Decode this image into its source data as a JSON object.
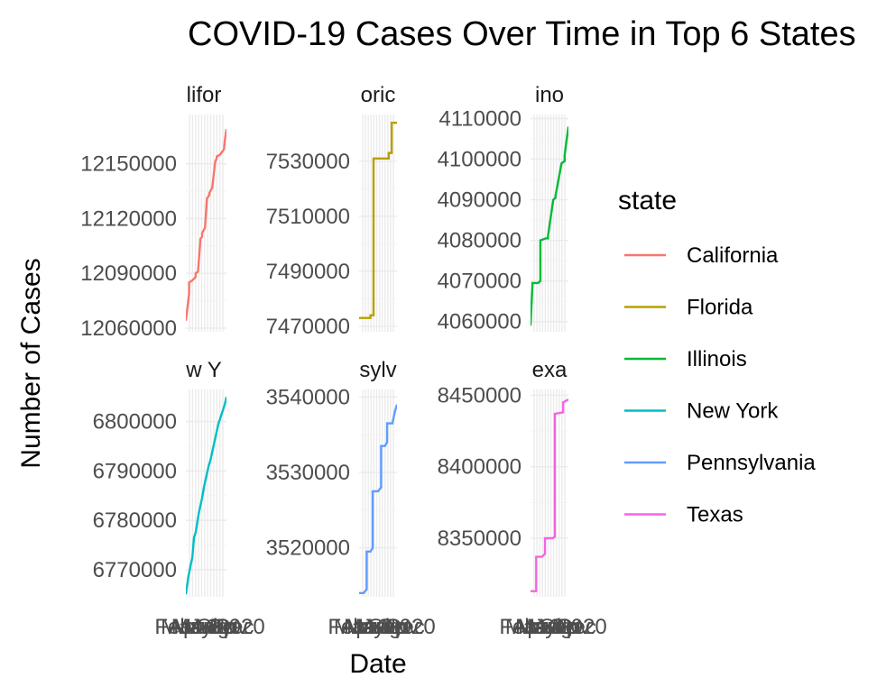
{
  "chart_data": {
    "type": "line",
    "title": "COVID-19 Cases Over Time in Top 6 States",
    "xlabel": "Date",
    "ylabel": "Number of Cases",
    "legend": {
      "title": "state",
      "position": "right"
    },
    "x_tick_labels": [
      "Feb",
      "Mar",
      "Apr",
      "May",
      "Jun",
      "Jul",
      "Aug",
      "Sep",
      "Oct",
      "Nov",
      "Dec",
      "2020"
    ],
    "grid": true,
    "panels": [
      {
        "state": "California",
        "strip_label": "lifor",
        "color": "#F8766D",
        "yticks": [
          12060000,
          12090000,
          12120000,
          12150000
        ],
        "ylim": [
          12058000,
          12177000
        ],
        "x": [
          0.0,
          0.08,
          0.08,
          0.15,
          0.2,
          0.24,
          0.24,
          0.3,
          0.36,
          0.4,
          0.4,
          0.47,
          0.52,
          0.58,
          0.58,
          0.65,
          0.72,
          0.76,
          0.76,
          0.84,
          0.91,
          0.94,
          0.96,
          1.0
        ],
        "values": [
          12064000,
          12079000,
          12085000,
          12086000,
          12087000,
          12088000,
          12090000,
          12091000,
          12109000,
          12110000,
          12112000,
          12115000,
          12131000,
          12133000,
          12134000,
          12137000,
          12151000,
          12153000,
          12154000,
          12155000,
          12157000,
          12158000,
          12163000,
          12169000
        ]
      },
      {
        "state": "Florida",
        "strip_label": "oric",
        "color": "#B79F00",
        "yticks": [
          7470000,
          7490000,
          7510000,
          7530000
        ],
        "ylim": [
          7468000,
          7547000
        ],
        "x": [
          0.0,
          0.3,
          0.3,
          0.38,
          0.38,
          0.78,
          0.78,
          0.86,
          0.86,
          1.0
        ],
        "values": [
          7473000,
          7473000,
          7474000,
          7474000,
          7531000,
          7531000,
          7533000,
          7533000,
          7544000,
          7544000
        ]
      },
      {
        "state": "Illinois",
        "strip_label": "ino",
        "color": "#00BA38",
        "yticks": [
          4060000,
          4070000,
          4080000,
          4090000,
          4100000,
          4110000
        ],
        "ylim": [
          4057500,
          4111000
        ],
        "x": [
          0.0,
          0.05,
          0.05,
          0.2,
          0.26,
          0.26,
          0.4,
          0.46,
          0.46,
          0.6,
          0.66,
          0.66,
          0.82,
          0.9,
          0.9,
          1.0
        ],
        "values": [
          4059000,
          4069000,
          4069500,
          4069500,
          4070000,
          4080000,
          4080500,
          4080500,
          4081000,
          4090000,
          4090500,
          4091000,
          4099000,
          4099500,
          4101000,
          4108000
        ]
      },
      {
        "state": "New York",
        "strip_label": "w Y",
        "color": "#00BFC4",
        "yticks": [
          6770000,
          6780000,
          6790000,
          6800000
        ],
        "ylim": [
          6764500,
          6806500
        ],
        "x": [
          0.0,
          0.06,
          0.12,
          0.16,
          0.2,
          0.24,
          0.28,
          0.32,
          0.36,
          0.4,
          0.44,
          0.48,
          0.52,
          0.56,
          0.6,
          0.64,
          0.68,
          0.72,
          0.76,
          0.8,
          0.84,
          0.88,
          0.92,
          0.96,
          1.0
        ],
        "values": [
          6765000,
          6768500,
          6771000,
          6772500,
          6776500,
          6777500,
          6779500,
          6781500,
          6783000,
          6784500,
          6786500,
          6788000,
          6789500,
          6791000,
          6792000,
          6793500,
          6795000,
          6796500,
          6798000,
          6799500,
          6800500,
          6801500,
          6802500,
          6803500,
          6805000
        ]
      },
      {
        "state": "Pennsylvania",
        "strip_label": "sylv",
        "color": "#619CFF",
        "yticks": [
          3520000,
          3530000,
          3540000
        ],
        "ylim": [
          3513500,
          3541000
        ],
        "x": [
          0.0,
          0.12,
          0.2,
          0.2,
          0.3,
          0.36,
          0.36,
          0.5,
          0.58,
          0.58,
          0.68,
          0.74,
          0.74,
          0.88,
          0.94,
          1.0
        ],
        "values": [
          3514000,
          3514000,
          3514500,
          3519500,
          3519500,
          3520000,
          3527500,
          3527500,
          3528000,
          3533500,
          3533500,
          3534000,
          3536500,
          3536500,
          3538000,
          3539000
        ]
      },
      {
        "state": "Texas",
        "strip_label": "exa",
        "color": "#F564E3",
        "yticks": [
          8350000,
          8400000,
          8450000
        ],
        "ylim": [
          8309000,
          8454000
        ],
        "x": [
          0.0,
          0.15,
          0.15,
          0.3,
          0.38,
          0.38,
          0.58,
          0.64,
          0.64,
          0.86,
          0.86,
          1.0
        ],
        "values": [
          8313000,
          8313000,
          8337000,
          8337000,
          8339000,
          8350000,
          8350000,
          8351000,
          8437000,
          8438000,
          8445000,
          8447000
        ]
      }
    ]
  }
}
